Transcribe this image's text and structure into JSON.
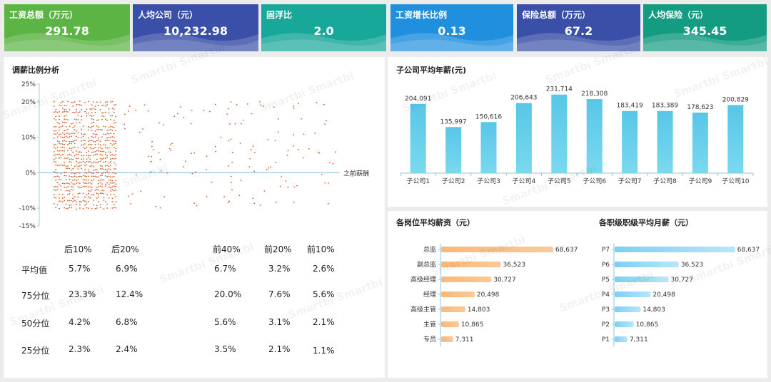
{
  "kpis": [
    {
      "label": "工资总额（万元）",
      "value": "291.78",
      "color": "#5bb444"
    },
    {
      "label": "人均公司（元）",
      "value": "10,232.98",
      "color": "#3a4fa8"
    },
    {
      "label": "固浮比",
      "value": "2.0",
      "color": "#18a89a"
    },
    {
      "label": "工资增长比例",
      "value": "0.13",
      "color": "#1f8fde"
    },
    {
      "label": "保险总额（万元）",
      "value": "67.2",
      "color": "#3a4fa8"
    },
    {
      "label": "人均保险（元）",
      "value": "345.45",
      "color": "#139c82"
    }
  ],
  "scatter_panel": {
    "title": "调薪比例分析",
    "x_axis_label": "之前薪酬"
  },
  "stats_table": {
    "headers": [
      "后10%",
      "后20%",
      "前40%",
      "前20%",
      "前10%"
    ],
    "rows": [
      {
        "label": "平均值",
        "values": [
          "5.7%",
          "6.9%",
          "6.7%",
          "3.2%",
          "2.6%"
        ]
      },
      {
        "label": "75分位",
        "values": [
          "23.3%",
          "12.4%",
          "20.0%",
          "7.6%",
          "5.6%"
        ]
      },
      {
        "label": "50分位",
        "values": [
          "4.2%",
          "6.8%",
          "5.6%",
          "3.1%",
          "2.1%"
        ]
      },
      {
        "label": "25分位",
        "values": [
          "2.3%",
          "2.4%",
          "3.5%",
          "2.1%",
          "1.1%"
        ]
      }
    ]
  },
  "bar_panel_title": "子公司平均年薪(元)",
  "position_panel_title": "各岗位平均薪资（元）",
  "level_panel_title": "各职级职级平均月薪（元）",
  "watermark": "Smartbi Smartbi",
  "chart_data": [
    {
      "type": "scatter",
      "title": "调薪比例分析",
      "xlabel": "之前薪酬",
      "ylabel": "",
      "ylim": [
        -15,
        25
      ],
      "y_ticks": [
        "25%",
        "20%",
        "10%",
        "0%",
        "-10%",
        "-15%"
      ],
      "y_tick_values": [
        25,
        20,
        10,
        0,
        -10,
        -15
      ],
      "grid": false,
      "note_points": "dense cluster at low prior salary (approx. 0-22% of x range) spanning -10% to 20%, sparse points beyond"
    },
    {
      "type": "bar",
      "title": "子公司平均年薪(元)",
      "categories": [
        "子公司1",
        "子公司2",
        "子公司3",
        "子公司4",
        "子公司5",
        "子公司6",
        "子公司7",
        "子公司8",
        "子公司9",
        "子公司10"
      ],
      "values": [
        204091,
        135997,
        150616,
        206643,
        231714,
        218308,
        183419,
        183389,
        178623,
        200829
      ],
      "labels": [
        "204,091",
        "135,997",
        "150,616",
        "206,643",
        "231,714",
        "218,308",
        "183,419",
        "183,389",
        "178,623",
        "200,829"
      ],
      "ylim": [
        0,
        250000
      ],
      "color": "#5ccbe8"
    },
    {
      "type": "bar",
      "orientation": "horizontal",
      "title": "各岗位平均薪资（元）",
      "categories": [
        "总监",
        "副总监",
        "高级经理",
        "经理",
        "高级主管",
        "主管",
        "专员"
      ],
      "values": [
        68637,
        36523,
        30727,
        20498,
        14803,
        10865,
        7311
      ],
      "labels": [
        "68,637",
        "36,523",
        "30,727",
        "20,498",
        "14,803",
        "10,865",
        "7,311"
      ],
      "xlim": [
        0,
        70000
      ],
      "color": "#fbbf85"
    },
    {
      "type": "bar",
      "orientation": "horizontal",
      "title": "各职级职级平均月薪（元）",
      "categories": [
        "P7",
        "P6",
        "P5",
        "P4",
        "P3",
        "P2",
        "P1"
      ],
      "values": [
        68637,
        36523,
        30727,
        20498,
        14803,
        10865,
        7311
      ],
      "labels": [
        "68,637",
        "36,523",
        "30,727",
        "20,498",
        "14,803",
        "10,865",
        "7,311"
      ],
      "xlim": [
        0,
        70000
      ],
      "color": "#8fd6f5"
    }
  ]
}
